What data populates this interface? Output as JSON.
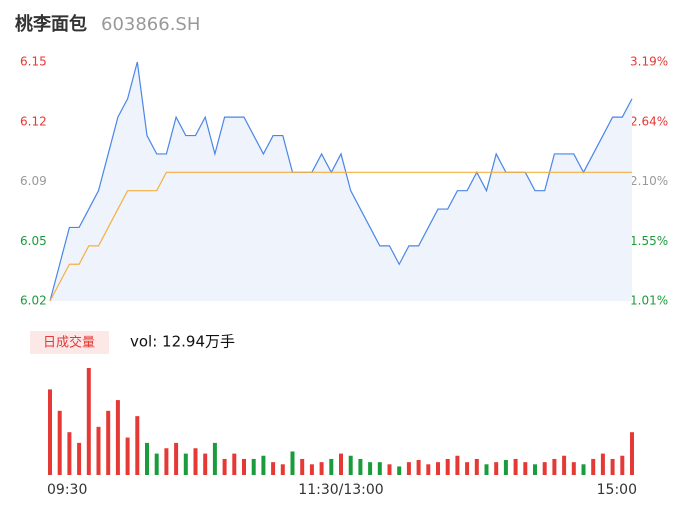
{
  "chart_data": {
    "type": "line",
    "title": "桃李面包",
    "subtitle": "603866.SH",
    "x": [
      0,
      4,
      8,
      12,
      16,
      20,
      24,
      28,
      32,
      36,
      40,
      44,
      48,
      52,
      56,
      60,
      64,
      68,
      72,
      76,
      80,
      84,
      88,
      92,
      96,
      100,
      104,
      108,
      112,
      116,
      120,
      124,
      128,
      132,
      136,
      140,
      144,
      148,
      152,
      156,
      160,
      164,
      168,
      172,
      176,
      180,
      184,
      188,
      192,
      196,
      200,
      204,
      208,
      212,
      216,
      220,
      224,
      228,
      232,
      236,
      240
    ],
    "xlim": [
      0,
      240
    ],
    "xticks": [
      {
        "value": 0,
        "label": "09:30"
      },
      {
        "value": 120,
        "label": "11:30/13:00"
      },
      {
        "value": 240,
        "label": "15:00"
      }
    ],
    "ylim": [
      6.02,
      6.15
    ],
    "yticks": [
      {
        "value": 6.15,
        "label": "6.15"
      },
      {
        "value": 6.1175,
        "label": "6.12"
      },
      {
        "value": 6.085,
        "label": "6.09"
      },
      {
        "value": 6.0525,
        "label": "6.05"
      },
      {
        "value": 6.02,
        "label": "6.02"
      }
    ],
    "y2lim": [
      1.01,
      3.19
    ],
    "y2ticks": [
      {
        "value": 3.19,
        "label": "3.19%"
      },
      {
        "value": 2.645,
        "label": "2.64%"
      },
      {
        "value": 2.1,
        "label": "2.10%"
      },
      {
        "value": 1.555,
        "label": "1.55%"
      },
      {
        "value": 1.01,
        "label": "1.01%"
      }
    ],
    "tick_colors": [
      "#e53935",
      "#e53935",
      "#999999",
      "#1a9c3c",
      "#1a9c3c"
    ],
    "series": [
      {
        "color": "#4a86e8",
        "values": [
          6.02,
          6.04,
          6.06,
          6.06,
          6.07,
          6.08,
          6.1,
          6.12,
          6.13,
          6.15,
          6.11,
          6.1,
          6.1,
          6.12,
          6.11,
          6.11,
          6.12,
          6.1,
          6.12,
          6.12,
          6.12,
          6.11,
          6.1,
          6.11,
          6.11,
          6.09,
          6.09,
          6.09,
          6.1,
          6.09,
          6.1,
          6.08,
          6.07,
          6.06,
          6.05,
          6.05,
          6.04,
          6.05,
          6.05,
          6.06,
          6.07,
          6.07,
          6.08,
          6.08,
          6.09,
          6.08,
          6.1,
          6.09,
          6.09,
          6.09,
          6.08,
          6.08,
          6.1,
          6.1,
          6.1,
          6.09,
          6.1,
          6.11,
          6.12,
          6.12,
          6.13
        ]
      },
      {
        "color": "#f5b041",
        "values": [
          6.02,
          6.03,
          6.04,
          6.04,
          6.05,
          6.05,
          6.06,
          6.07,
          6.08,
          6.08,
          6.08,
          6.08,
          6.09,
          6.09,
          6.09,
          6.09,
          6.09,
          6.09,
          6.09,
          6.09,
          6.09,
          6.09,
          6.09,
          6.09,
          6.09,
          6.09,
          6.09,
          6.09,
          6.09,
          6.09,
          6.09,
          6.09,
          6.09,
          6.09,
          6.09,
          6.09,
          6.09,
          6.09,
          6.09,
          6.09,
          6.09,
          6.09,
          6.09,
          6.09,
          6.09,
          6.09,
          6.09,
          6.09,
          6.09,
          6.09,
          6.09,
          6.09,
          6.09,
          6.09,
          6.09,
          6.09,
          6.09,
          6.09,
          6.09,
          6.09,
          6.09
        ]
      }
    ],
    "volume": {
      "label": "日成交量",
      "caption": "vol: 12.94万手",
      "ylim": [
        0,
        100
      ],
      "up_color": "#e53935",
      "down_color": "#1a9c3c",
      "values": [
        80,
        60,
        40,
        30,
        100,
        45,
        60,
        70,
        35,
        55,
        30,
        20,
        25,
        30,
        20,
        25,
        20,
        30,
        15,
        20,
        15,
        15,
        18,
        12,
        10,
        22,
        15,
        10,
        12,
        15,
        20,
        18,
        15,
        12,
        12,
        10,
        8,
        12,
        14,
        10,
        12,
        15,
        18,
        12,
        15,
        10,
        12,
        14,
        15,
        12,
        10,
        12,
        15,
        18,
        12,
        10,
        15,
        20,
        15,
        18,
        40
      ]
    }
  }
}
